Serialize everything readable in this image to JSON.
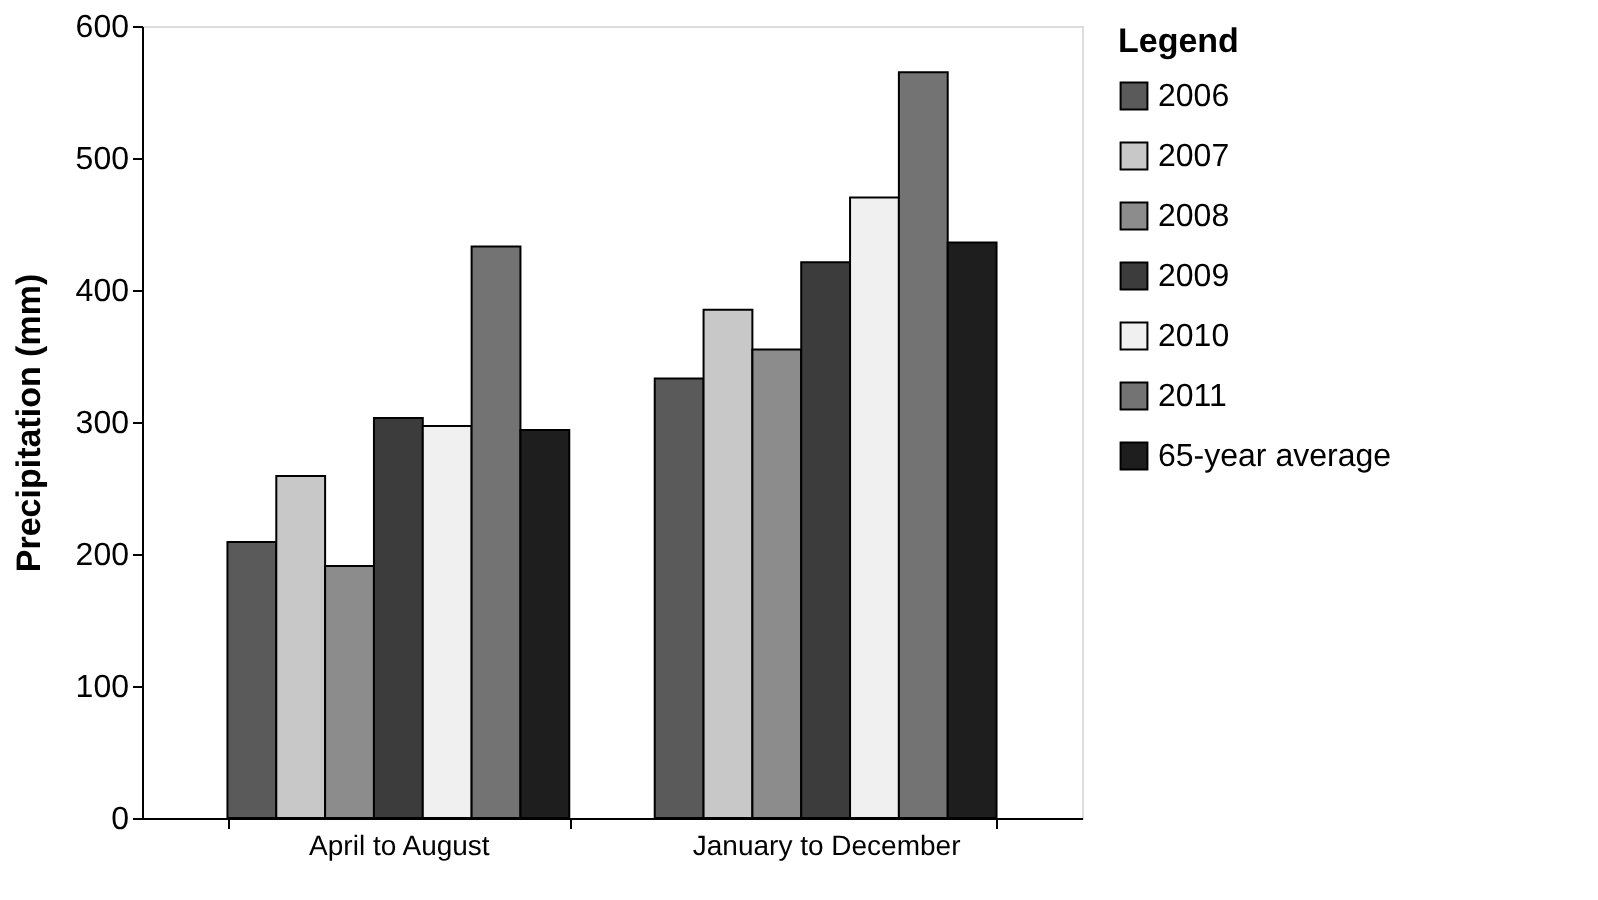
{
  "chart_data": {
    "type": "bar",
    "ylabel": "Precipitation (mm)",
    "legend_title": "Legend",
    "categories": [
      "April to August",
      "January to December"
    ],
    "series": [
      {
        "name": "2006",
        "color": "#5a5a5a",
        "values": [
          209,
          333
        ]
      },
      {
        "name": "2007",
        "color": "#c8c8c8",
        "values": [
          259,
          385
        ]
      },
      {
        "name": "2008",
        "color": "#8c8c8c",
        "values": [
          191,
          355
        ]
      },
      {
        "name": "2009",
        "color": "#3c3c3c",
        "values": [
          303,
          421
        ]
      },
      {
        "name": "2010",
        "color": "#f0f0f0",
        "values": [
          297,
          470
        ]
      },
      {
        "name": "2011",
        "color": "#737373",
        "values": [
          433,
          565
        ]
      },
      {
        "name": "65-year average",
        "color": "#1e1e1e",
        "values": [
          294,
          436
        ]
      }
    ],
    "ylim": [
      0,
      600
    ],
    "yticks": [
      0,
      100,
      200,
      300,
      400,
      500,
      600
    ],
    "grid": false,
    "legend": "right"
  }
}
